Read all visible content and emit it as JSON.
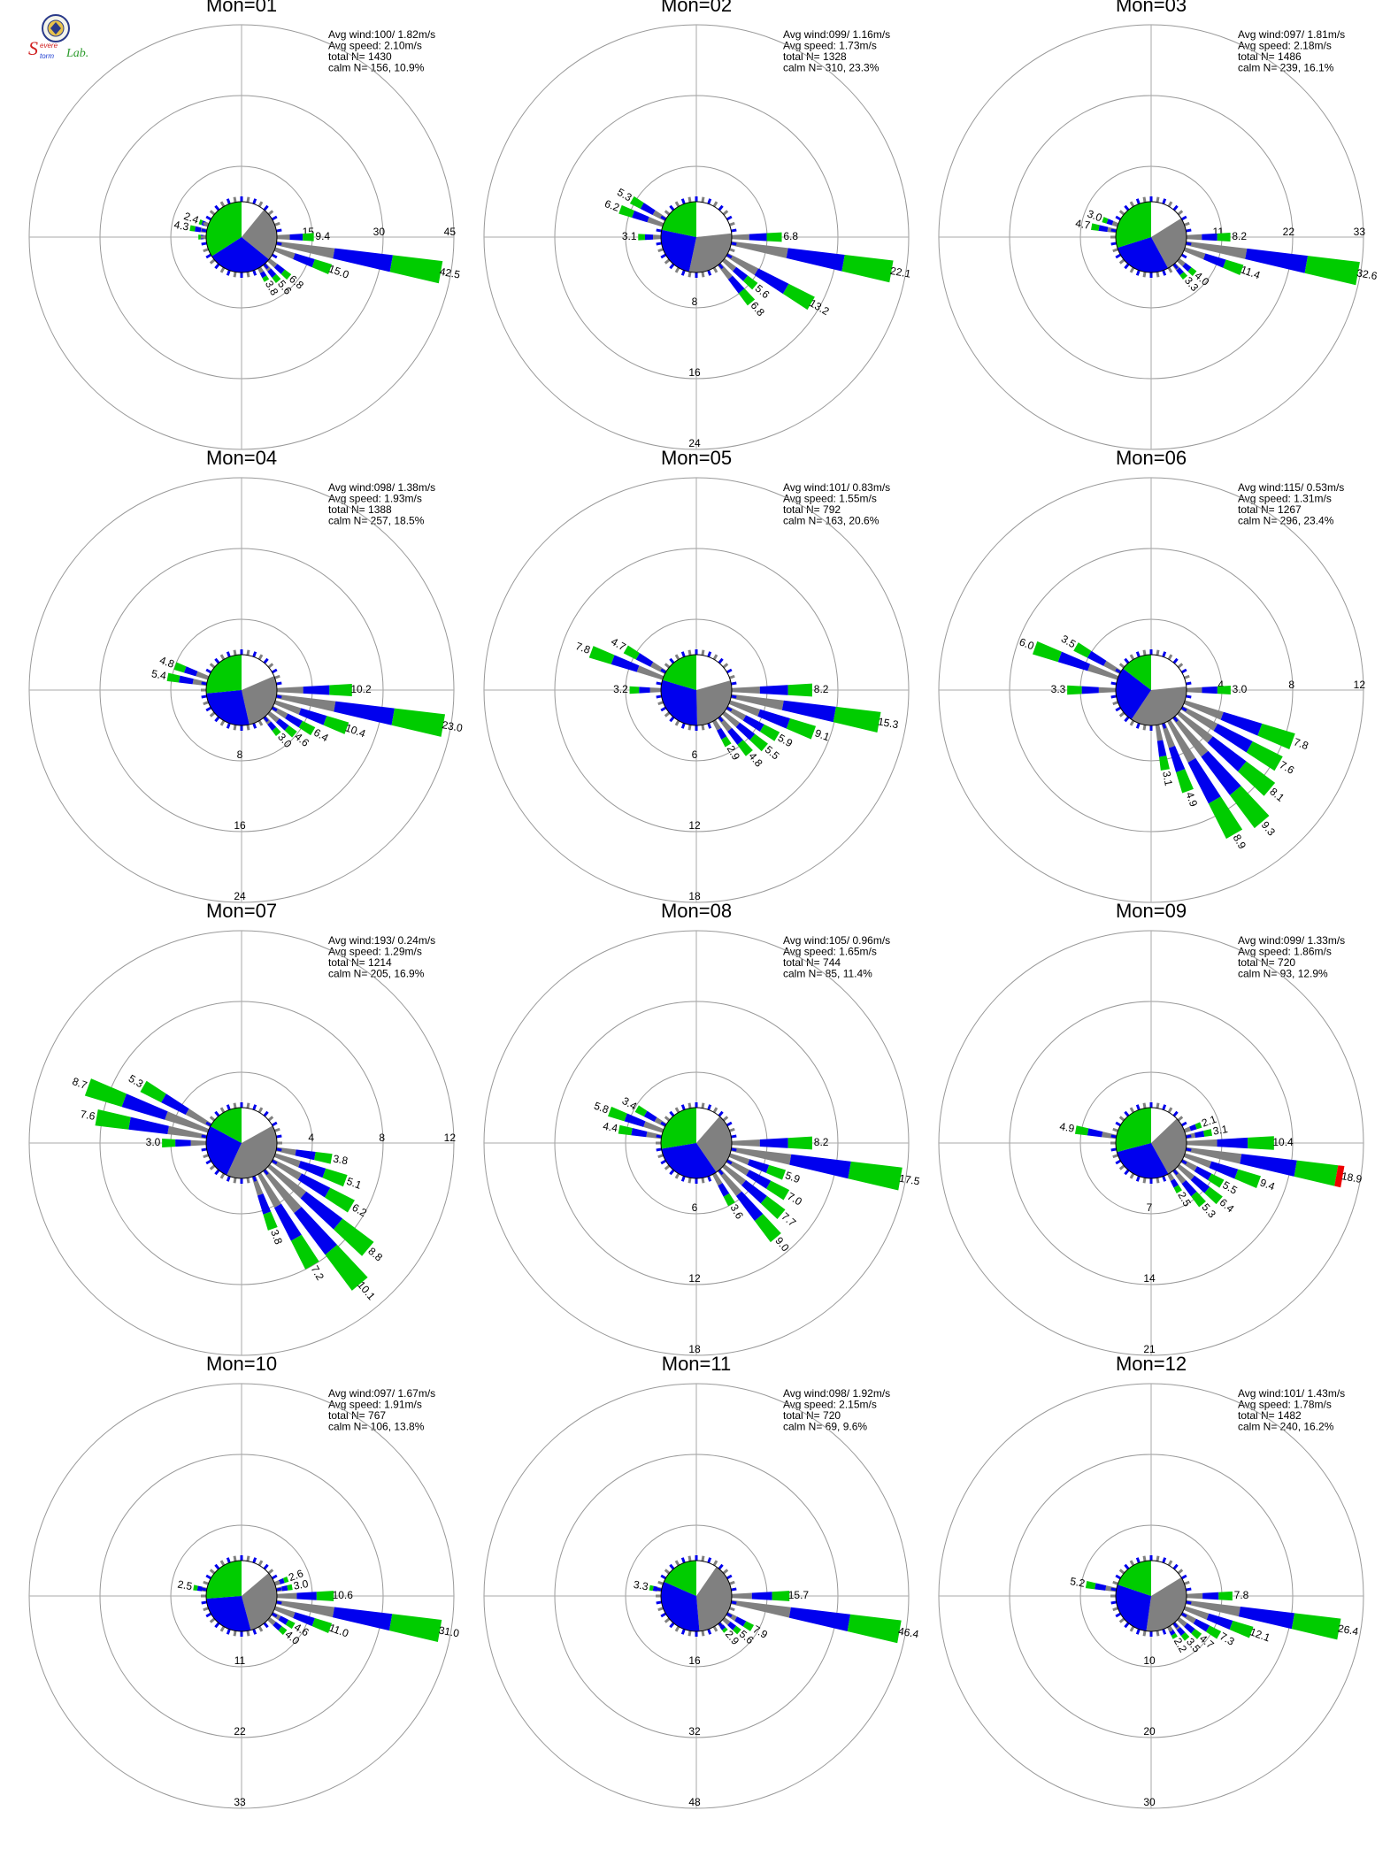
{
  "logo": {
    "text_s": "S",
    "text_evere": "evere",
    "text_torm": "torm",
    "text_lab": "Lab."
  },
  "colors": {
    "bin1": "#808080",
    "bin2": "#0000ee",
    "bin3": "#00cc00",
    "bin4": "#ee0000",
    "ring": "#999999",
    "axis": "#aaaaaa"
  },
  "chart_data": [
    {
      "type": "windrose",
      "title": "Mon=01",
      "info": {
        "avg_wind": "Avg wind:100/ 1.82m/s",
        "avg_speed": "Avg speed: 2.10m/s",
        "total_n": "total N=      1430",
        "calm_n": "calm N=   156,  10.9%"
      },
      "calm_pie": [
        0.109,
        0.25,
        0.3,
        0.341
      ],
      "rings": [
        "15",
        "30",
        "45"
      ],
      "ring_axis": "east",
      "rmax": 45,
      "bars": [
        {
          "dir": 90,
          "v": 9.4
        },
        {
          "dir": 100,
          "v": 42.5
        },
        {
          "dir": 110,
          "v": 15.0
        },
        {
          "dir": 130,
          "v": 6.8
        },
        {
          "dir": 140,
          "v": 5.6
        },
        {
          "dir": 150,
          "v": 3.8
        },
        {
          "dir": 290,
          "v": 2.4
        },
        {
          "dir": 280,
          "v": 4.3
        },
        {
          "dir": 270,
          "v": 2.0
        }
      ],
      "labels": [
        "9.4",
        "42.5",
        "15.0",
        "6.8",
        "5.6",
        "3.8",
        "2.4",
        "4.3",
        ""
      ]
    },
    {
      "type": "windrose",
      "title": "Mon=02",
      "info": {
        "avg_wind": "Avg wind:099/ 1.16m/s",
        "avg_speed": "Avg speed: 1.73m/s",
        "total_n": "total N=      1328",
        "calm_n": "calm N=   310,  23.3%"
      },
      "calm_pie": [
        0.233,
        0.3,
        0.25,
        0.217
      ],
      "rings": [
        "8",
        "16",
        "24"
      ],
      "ring_axis": "south",
      "rmax": 24,
      "bars": [
        {
          "dir": 90,
          "v": 6.8
        },
        {
          "dir": 100,
          "v": 22.1
        },
        {
          "dir": 120,
          "v": 13.2
        },
        {
          "dir": 130,
          "v": 5.6
        },
        {
          "dir": 140,
          "v": 6.8
        },
        {
          "dir": 290,
          "v": 6.2
        },
        {
          "dir": 300,
          "v": 5.3
        },
        {
          "dir": 270,
          "v": 3.1
        }
      ],
      "labels": [
        "6.8",
        "22.1",
        "13.2",
        "5.6",
        "6.8",
        "6.2",
        "5.3",
        "3.1"
      ]
    },
    {
      "type": "windrose",
      "title": "Mon=03",
      "info": {
        "avg_wind": "Avg wind:097/ 1.81m/s",
        "avg_speed": "Avg speed: 2.18m/s",
        "total_n": "total N=      1486",
        "calm_n": "calm N=   239,  16.1%"
      },
      "calm_pie": [
        0.161,
        0.26,
        0.28,
        0.299
      ],
      "rings": [
        "11",
        "22",
        "33"
      ],
      "ring_axis": "east",
      "rmax": 33,
      "bars": [
        {
          "dir": 90,
          "v": 8.2
        },
        {
          "dir": 100,
          "v": 32.6
        },
        {
          "dir": 110,
          "v": 11.4
        },
        {
          "dir": 130,
          "v": 4.0
        },
        {
          "dir": 140,
          "v": 3.3
        },
        {
          "dir": 280,
          "v": 4.7
        },
        {
          "dir": 290,
          "v": 3.0
        }
      ],
      "labels": [
        "8.2",
        "32.6",
        "11.4",
        "4.0",
        "3.3",
        "4.7",
        "3.0"
      ]
    },
    {
      "type": "windrose",
      "title": "Mon=04",
      "info": {
        "avg_wind": "Avg wind:098/ 1.38m/s",
        "avg_speed": "Avg speed: 1.93m/s",
        "total_n": "total N=      1388",
        "calm_n": "calm N=   257,  18.5%"
      },
      "calm_pie": [
        0.185,
        0.28,
        0.27,
        0.265
      ],
      "rings": [
        "8",
        "16",
        "24"
      ],
      "ring_axis": "south",
      "rmax": 24,
      "bars": [
        {
          "dir": 90,
          "v": 10.2
        },
        {
          "dir": 100,
          "v": 23.0
        },
        {
          "dir": 110,
          "v": 10.4
        },
        {
          "dir": 120,
          "v": 6.4
        },
        {
          "dir": 130,
          "v": 4.6
        },
        {
          "dir": 140,
          "v": 3.0
        },
        {
          "dir": 280,
          "v": 5.4
        },
        {
          "dir": 290,
          "v": 4.8
        }
      ],
      "labels": [
        "10.2",
        "23.0",
        "10.4",
        "6.4",
        "4.6",
        "3.0",
        "5.4",
        "4.8"
      ]
    },
    {
      "type": "windrose",
      "title": "Mon=05",
      "info": {
        "avg_wind": "Avg wind:101/ 0.83m/s",
        "avg_speed": "Avg speed: 1.55m/s",
        "total_n": "total N=       792",
        "calm_n": "calm N=   163,  20.6%"
      },
      "calm_pie": [
        0.206,
        0.29,
        0.3,
        0.204
      ],
      "rings": [
        "6",
        "12",
        "18"
      ],
      "ring_axis": "south",
      "rmax": 18,
      "bars": [
        {
          "dir": 90,
          "v": 8.2
        },
        {
          "dir": 100,
          "v": 15.3
        },
        {
          "dir": 110,
          "v": 9.1
        },
        {
          "dir": 120,
          "v": 5.9
        },
        {
          "dir": 130,
          "v": 5.5
        },
        {
          "dir": 140,
          "v": 4.8
        },
        {
          "dir": 150,
          "v": 2.9
        },
        {
          "dir": 290,
          "v": 7.8
        },
        {
          "dir": 300,
          "v": 4.7
        },
        {
          "dir": 270,
          "v": 3.2
        }
      ],
      "labels": [
        "8.2",
        "15.3",
        "9.1",
        "5.9",
        "5.5",
        "4.8",
        "2.9",
        "7.8",
        "4.7",
        "3.2"
      ]
    },
    {
      "type": "windrose",
      "title": "Mon=06",
      "info": {
        "avg_wind": "Avg wind:115/ 0.53m/s",
        "avg_speed": "Avg speed: 1.31m/s",
        "total_n": "total N=      1267",
        "calm_n": "calm N=   296,  23.4%"
      },
      "calm_pie": [
        0.234,
        0.36,
        0.26,
        0.146
      ],
      "rings": [
        "4",
        "8",
        "12"
      ],
      "ring_axis": "east",
      "rmax": 12,
      "bars": [
        {
          "dir": 90,
          "v": 3.0
        },
        {
          "dir": 110,
          "v": 7.8
        },
        {
          "dir": 120,
          "v": 7.6
        },
        {
          "dir": 130,
          "v": 8.1
        },
        {
          "dir": 140,
          "v": 9.3
        },
        {
          "dir": 150,
          "v": 8.9
        },
        {
          "dir": 160,
          "v": 4.9
        },
        {
          "dir": 170,
          "v": 3.1
        },
        {
          "dir": 290,
          "v": 6.0
        },
        {
          "dir": 300,
          "v": 3.5
        },
        {
          "dir": 270,
          "v": 3.3
        }
      ],
      "labels": [
        "3.0",
        "7.8",
        "7.6",
        "8.1",
        "9.3",
        "8.9",
        "4.9",
        "3.1",
        "6.0",
        "3.5",
        "3.3"
      ]
    },
    {
      "type": "windrose",
      "title": "Mon=07",
      "info": {
        "avg_wind": "Avg wind:193/ 0.24m/s",
        "avg_speed": "Avg speed: 1.29m/s",
        "total_n": "total N=      1214",
        "calm_n": "calm N=   205,  16.9%"
      },
      "calm_pie": [
        0.169,
        0.4,
        0.26,
        0.171
      ],
      "rings": [
        "4",
        "8",
        "12"
      ],
      "ring_axis": "east",
      "rmax": 12,
      "bars": [
        {
          "dir": 100,
          "v": 3.8
        },
        {
          "dir": 110,
          "v": 5.1
        },
        {
          "dir": 120,
          "v": 6.2
        },
        {
          "dir": 130,
          "v": 8.8
        },
        {
          "dir": 140,
          "v": 10.1
        },
        {
          "dir": 150,
          "v": 7.2
        },
        {
          "dir": 160,
          "v": 3.8
        },
        {
          "dir": 290,
          "v": 8.7
        },
        {
          "dir": 300,
          "v": 5.3
        },
        {
          "dir": 280,
          "v": 7.6
        },
        {
          "dir": 270,
          "v": 3.0
        }
      ],
      "labels": [
        "3.8",
        "5.1",
        "6.2",
        "8.8",
        "10.1",
        "7.2",
        "3.8",
        "8.7",
        "5.3",
        "7.6",
        "3.0"
      ]
    },
    {
      "type": "windrose",
      "title": "Mon=08",
      "info": {
        "avg_wind": "Avg wind:105/ 0.96m/s",
        "avg_speed": "Avg speed: 1.65m/s",
        "total_n": "total N=       744",
        "calm_n": "calm N=    85,  11.4%"
      },
      "calm_pie": [
        0.114,
        0.29,
        0.32,
        0.276
      ],
      "rings": [
        "6",
        "12",
        "18"
      ],
      "ring_axis": "south",
      "rmax": 18,
      "bars": [
        {
          "dir": 90,
          "v": 8.2
        },
        {
          "dir": 100,
          "v": 17.5
        },
        {
          "dir": 110,
          "v": 5.9
        },
        {
          "dir": 120,
          "v": 7.0
        },
        {
          "dir": 130,
          "v": 7.7
        },
        {
          "dir": 140,
          "v": 9.0
        },
        {
          "dir": 150,
          "v": 3.6
        },
        {
          "dir": 290,
          "v": 5.8
        },
        {
          "dir": 300,
          "v": 3.4
        },
        {
          "dir": 280,
          "v": 4.4
        }
      ],
      "labels": [
        "8.2",
        "17.5",
        "5.9",
        "7.0",
        "7.7",
        "9.0",
        "3.6",
        "5.8",
        "3.4",
        "4.4"
      ]
    },
    {
      "type": "windrose",
      "title": "Mon=09",
      "info": {
        "avg_wind": "Avg wind:099/ 1.33m/s",
        "avg_speed": "Avg speed: 1.86m/s",
        "total_n": "total N=       720",
        "calm_n": "calm N=    93,  12.9%"
      },
      "calm_pie": [
        0.129,
        0.29,
        0.29,
        0.291
      ],
      "rings": [
        "7",
        "14",
        "21"
      ],
      "ring_axis": "south",
      "rmax": 21,
      "bars": [
        {
          "dir": 90,
          "v": 10.4
        },
        {
          "dir": 100,
          "v": 18.9,
          "red": true
        },
        {
          "dir": 110,
          "v": 9.4
        },
        {
          "dir": 120,
          "v": 5.5
        },
        {
          "dir": 130,
          "v": 6.4
        },
        {
          "dir": 140,
          "v": 5.3
        },
        {
          "dir": 150,
          "v": 2.5
        },
        {
          "dir": 80,
          "v": 3.1
        },
        {
          "dir": 70,
          "v": 2.1
        },
        {
          "dir": 280,
          "v": 4.9
        }
      ],
      "labels": [
        "10.4",
        "18.9",
        "9.4",
        "5.5",
        "6.4",
        "5.3",
        "2.5",
        "3.1",
        "2.1",
        "4.9"
      ]
    },
    {
      "type": "windrose",
      "title": "Mon=10",
      "info": {
        "avg_wind": "Avg wind:097/ 1.67m/s",
        "avg_speed": "Avg speed: 1.91m/s",
        "total_n": "total N=       767",
        "calm_n": "calm N=   106,  13.8%"
      },
      "calm_pie": [
        0.138,
        0.32,
        0.28,
        0.262
      ],
      "rings": [
        "11",
        "22",
        "33"
      ],
      "ring_axis": "south",
      "rmax": 33,
      "bars": [
        {
          "dir": 90,
          "v": 10.6
        },
        {
          "dir": 100,
          "v": 31.0
        },
        {
          "dir": 110,
          "v": 11.0
        },
        {
          "dir": 120,
          "v": 4.6
        },
        {
          "dir": 130,
          "v": 4.0
        },
        {
          "dir": 80,
          "v": 3.0
        },
        {
          "dir": 70,
          "v": 2.6
        },
        {
          "dir": 280,
          "v": 2.5
        }
      ],
      "labels": [
        "10.6",
        "31.0",
        "11.0",
        "4.6",
        "4.0",
        "3.0",
        "2.6",
        "2.5"
      ]
    },
    {
      "type": "windrose",
      "title": "Mon=11",
      "info": {
        "avg_wind": "Avg wind:098/ 1.92m/s",
        "avg_speed": "Avg speed: 2.15m/s",
        "total_n": "total N=       720",
        "calm_n": "calm N=    69,   9.6%"
      },
      "calm_pie": [
        0.096,
        0.39,
        0.33,
        0.184
      ],
      "rings": [
        "16",
        "32",
        "48"
      ],
      "ring_axis": "south",
      "rmax": 48,
      "bars": [
        {
          "dir": 90,
          "v": 15.7
        },
        {
          "dir": 100,
          "v": 46.4
        },
        {
          "dir": 120,
          "v": 7.9
        },
        {
          "dir": 130,
          "v": 5.6
        },
        {
          "dir": 140,
          "v": 2.9
        },
        {
          "dir": 280,
          "v": 3.3
        }
      ],
      "labels": [
        "15.7",
        "46.4",
        "7.9",
        "5.6",
        "2.9",
        "3.3"
      ]
    },
    {
      "type": "windrose",
      "title": "Mon=12",
      "info": {
        "avg_wind": "Avg wind:101/ 1.43m/s",
        "avg_speed": "Avg speed: 1.78m/s",
        "total_n": "total N=      1482",
        "calm_n": "calm N=   240,  16.2%"
      },
      "calm_pie": [
        0.162,
        0.36,
        0.28,
        0.198
      ],
      "rings": [
        "10",
        "20",
        "30"
      ],
      "ring_axis": "south",
      "rmax": 30,
      "bars": [
        {
          "dir": 90,
          "v": 7.8
        },
        {
          "dir": 100,
          "v": 26.4
        },
        {
          "dir": 110,
          "v": 12.1
        },
        {
          "dir": 120,
          "v": 7.3
        },
        {
          "dir": 130,
          "v": 4.7
        },
        {
          "dir": 140,
          "v": 3.5
        },
        {
          "dir": 150,
          "v": 2.2
        },
        {
          "dir": 280,
          "v": 5.2
        }
      ],
      "labels": [
        "7.8",
        "26.4",
        "12.1",
        "7.3",
        "4.7",
        "3.5",
        "2.2",
        "5.2"
      ]
    }
  ]
}
